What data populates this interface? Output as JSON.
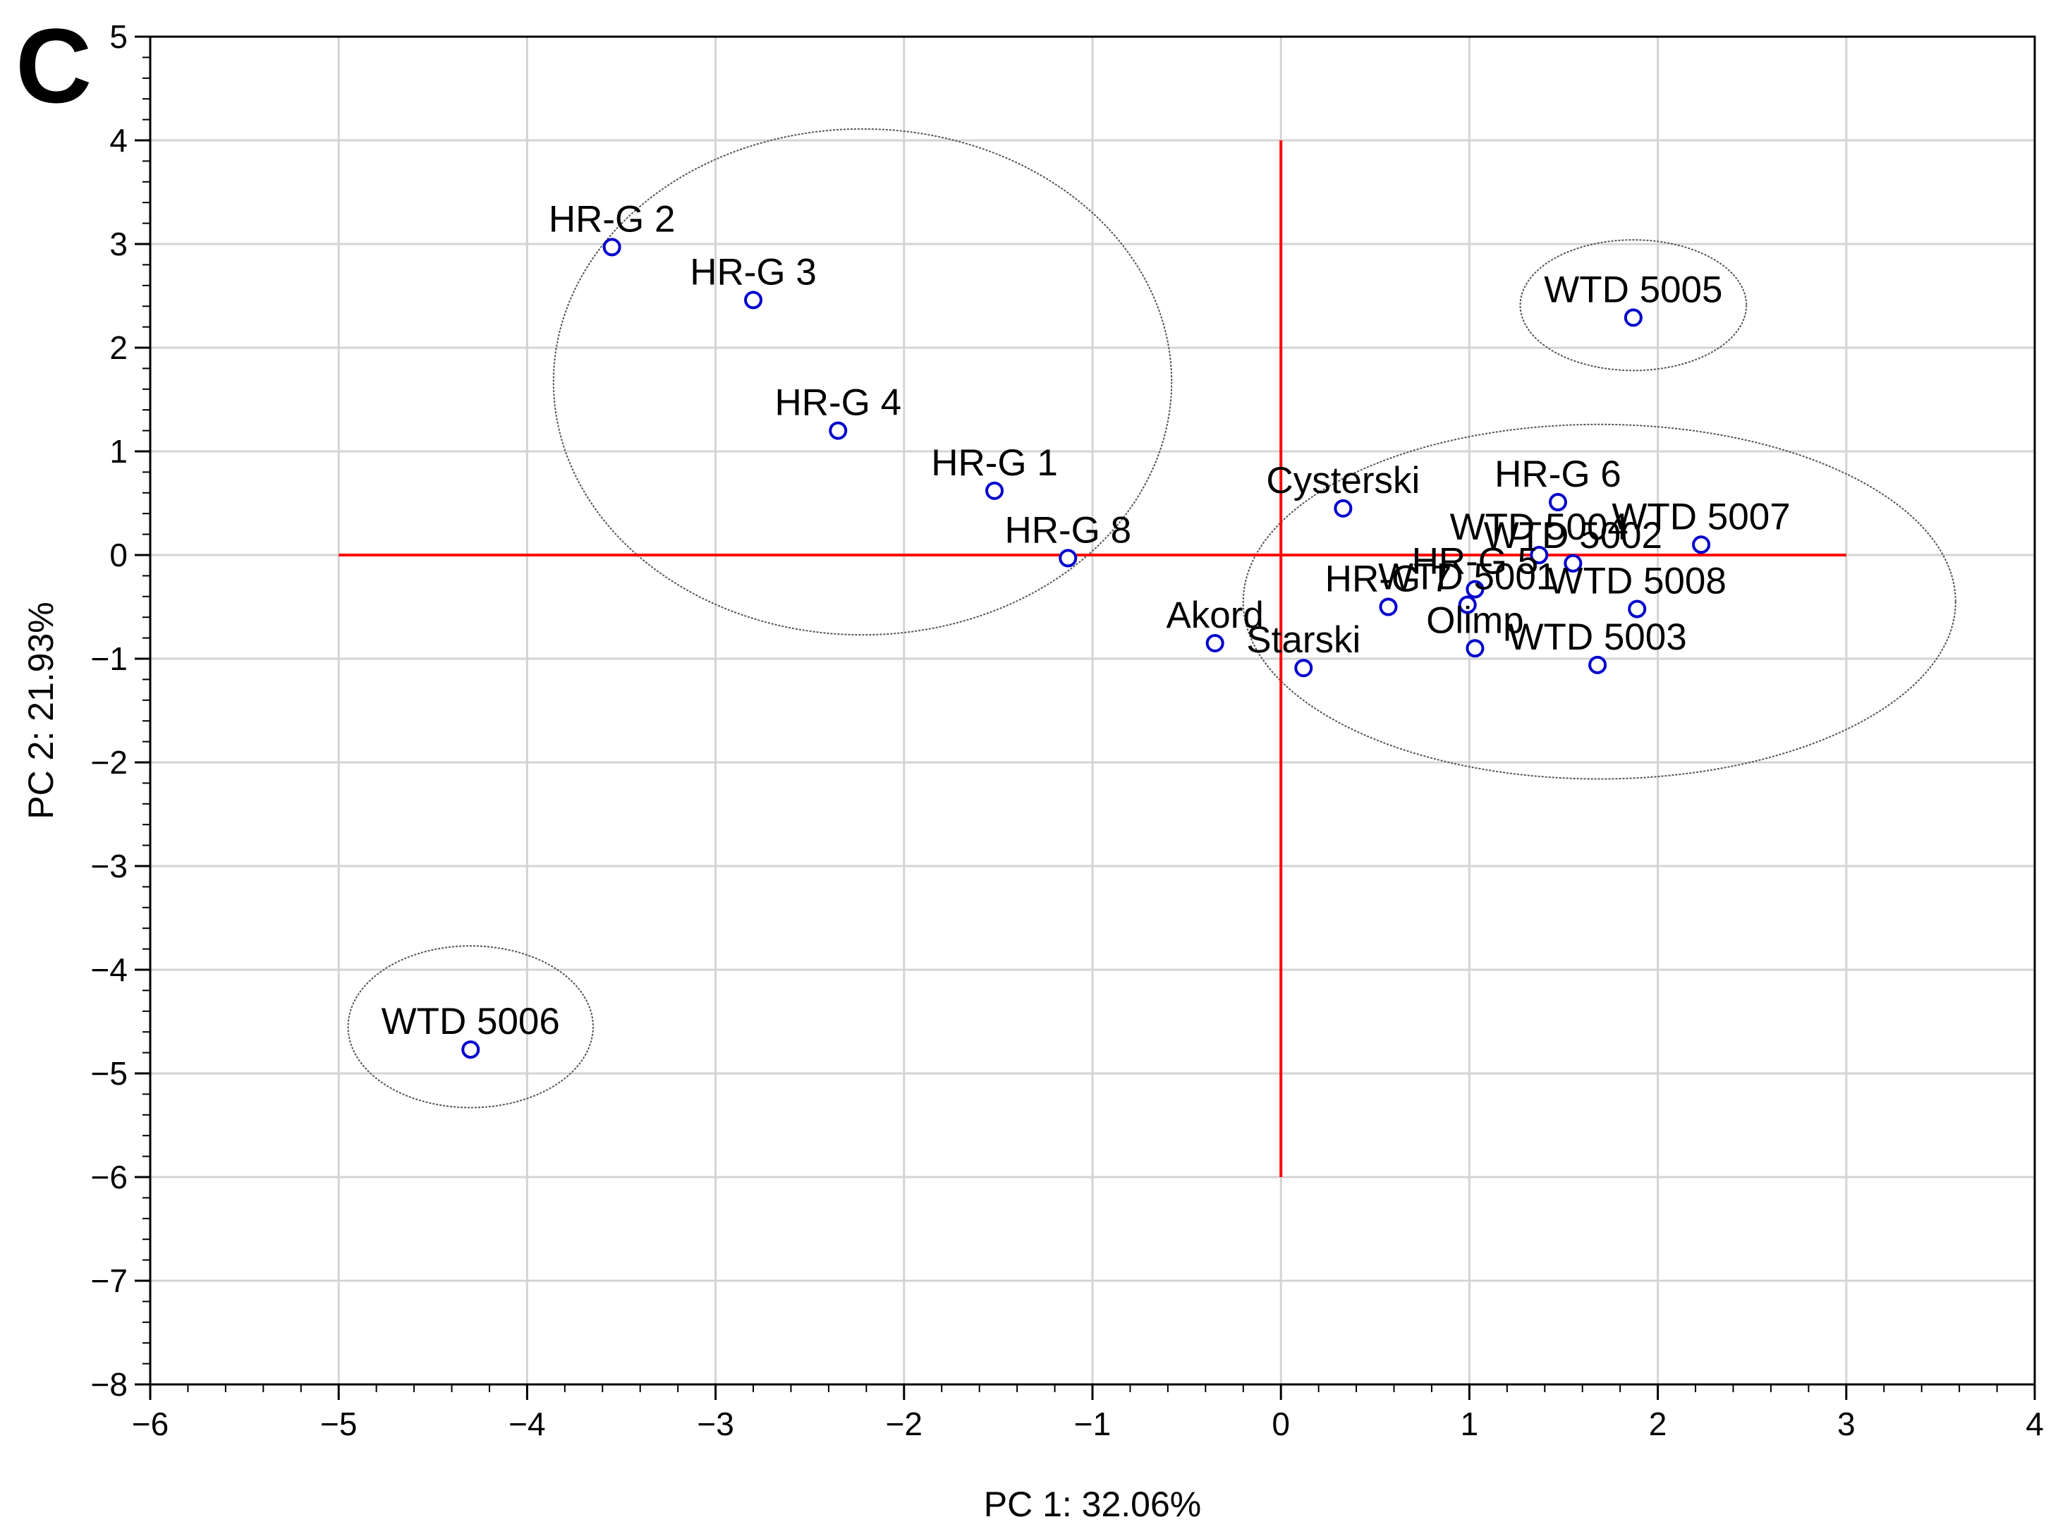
{
  "panel_letter": "C",
  "chart_data": {
    "type": "scatter",
    "xlabel": "PC 1: 32.06%",
    "ylabel": "PC 2: 21.93%",
    "xlim": [
      -6,
      4
    ],
    "ylim": [
      -8,
      5
    ],
    "x_ticks": [
      -6,
      -5,
      -4,
      -3,
      -2,
      -1,
      0,
      1,
      2,
      3,
      4
    ],
    "y_ticks": [
      -8,
      -7,
      -6,
      -5,
      -4,
      -3,
      -2,
      -1,
      0,
      1,
      2,
      3,
      4,
      5
    ],
    "grid": true,
    "marker_color": "#0000cc",
    "crosshair_color": "#ff0000",
    "crosshair": {
      "horizontal": {
        "y": 0,
        "x_from": -5,
        "x_to": 3
      },
      "vertical": {
        "x": 0,
        "y_from": -6,
        "y_to": 4
      }
    },
    "points": [
      {
        "label": "HR-G 2",
        "x": -3.55,
        "y": 2.97
      },
      {
        "label": "HR-G 3",
        "x": -2.8,
        "y": 2.46
      },
      {
        "label": "HR-G 4",
        "x": -2.35,
        "y": 1.2
      },
      {
        "label": "HR-G 1",
        "x": -1.52,
        "y": 0.62
      },
      {
        "label": "HR-G 8",
        "x": -1.13,
        "y": -0.03
      },
      {
        "label": "WTD 5005",
        "x": 1.87,
        "y": 2.29
      },
      {
        "label": "Cysterski",
        "x": 0.33,
        "y": 0.45
      },
      {
        "label": "HR-G 6",
        "x": 1.47,
        "y": 0.51
      },
      {
        "label": "WTD 5007",
        "x": 2.23,
        "y": 0.1
      },
      {
        "label": "WTD 5004",
        "x": 1.37,
        "y": 0.0
      },
      {
        "label": "WTD 5002",
        "x": 1.55,
        "y": -0.08
      },
      {
        "label": "HR-G 5",
        "x": 1.03,
        "y": -0.33
      },
      {
        "label": "WTD 5001",
        "x": 0.99,
        "y": -0.48
      },
      {
        "label": "HR-G 7",
        "x": 0.57,
        "y": -0.5
      },
      {
        "label": "WTD 5008",
        "x": 1.89,
        "y": -0.52
      },
      {
        "label": "Akord",
        "x": -0.35,
        "y": -0.85
      },
      {
        "label": "Olimp",
        "x": 1.03,
        "y": -0.9
      },
      {
        "label": "Starski",
        "x": 0.12,
        "y": -1.09
      },
      {
        "label": "WTD 5003",
        "x": 1.68,
        "y": -1.06
      },
      {
        "label": "WTD 5006",
        "x": -4.3,
        "y": -4.77
      }
    ],
    "cluster_ellipses": [
      {
        "cx": -2.22,
        "cy": 1.67,
        "rx": 1.64,
        "ry": 2.44
      },
      {
        "cx": 1.87,
        "cy": 2.41,
        "rx": 0.6,
        "ry": 0.63
      },
      {
        "cx": 1.69,
        "cy": -0.45,
        "rx": 1.89,
        "ry": 1.71
      },
      {
        "cx": -4.3,
        "cy": -4.55,
        "rx": 0.65,
        "ry": 0.78
      }
    ]
  }
}
